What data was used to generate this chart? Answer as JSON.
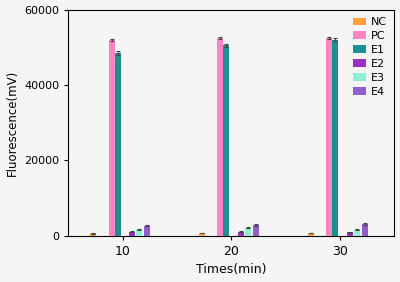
{
  "time_points": [
    10,
    20,
    30
  ],
  "time_labels": [
    "10",
    "20",
    "30"
  ],
  "groups": [
    "NC",
    "PC",
    "E1",
    "E2",
    "E3",
    "E4"
  ],
  "colors": [
    "#FFA040",
    "#FF85C0",
    "#1A9090",
    "#9B2FC0",
    "#90EED4",
    "#9060C8"
  ],
  "values": {
    "NC": [
      700,
      800,
      800
    ],
    "PC": [
      52000,
      52500,
      52500
    ],
    "E1": [
      48500,
      50500,
      52000
    ],
    "E2": [
      1100,
      1100,
      900
    ],
    "E3": [
      1800,
      2100,
      1600
    ],
    "E4": [
      2700,
      2900,
      3100
    ]
  },
  "errors": {
    "NC": [
      80,
      80,
      80
    ],
    "PC": [
      300,
      250,
      250
    ],
    "E1": [
      600,
      350,
      350
    ],
    "E2": [
      90,
      90,
      90
    ],
    "E3": [
      130,
      130,
      130
    ],
    "E4": [
      180,
      180,
      180
    ]
  },
  "ylabel": "Fluorescence(mV)",
  "xlabel": "Times(min)",
  "ylim": [
    0,
    60000
  ],
  "yticks": [
    0,
    20000,
    40000,
    60000
  ],
  "bar_width": 0.055,
  "figsize": [
    4.0,
    2.82
  ],
  "dpi": 100,
  "bg_color": "#f5f5f5"
}
